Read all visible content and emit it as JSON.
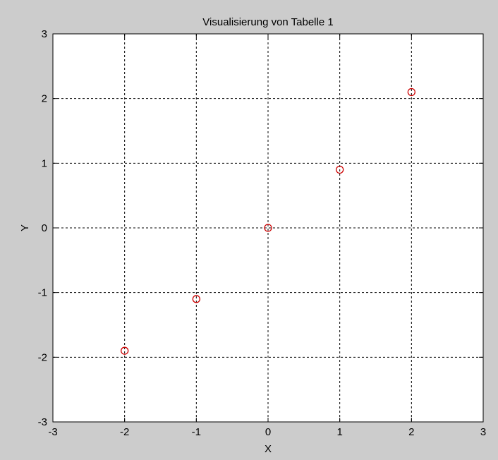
{
  "colors": {
    "figure_background": "#cccccc",
    "axes_background": "#ffffff",
    "marker": "#cc0000",
    "grid": "#000000"
  },
  "chart_data": {
    "type": "scatter",
    "title": "Visualisierung von Tabelle 1",
    "xlabel": "X",
    "ylabel": "Y",
    "xlim": [
      -3,
      3
    ],
    "ylim": [
      -3,
      3
    ],
    "xticks": [
      -3,
      -2,
      -1,
      0,
      1,
      2,
      3
    ],
    "yticks": [
      -3,
      -2,
      -1,
      0,
      1,
      2,
      3
    ],
    "grid": true,
    "grid_style": "dashed",
    "marker": "circle",
    "series": [
      {
        "x": [
          -2,
          -1,
          0,
          1,
          2
        ],
        "y": [
          -1.9,
          -1.1,
          0.0,
          0.9,
          2.1
        ]
      }
    ]
  }
}
